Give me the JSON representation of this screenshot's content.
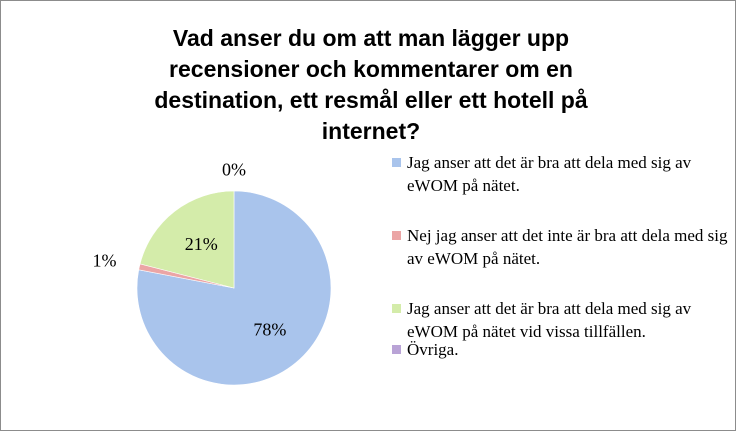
{
  "chart_data": {
    "type": "pie",
    "title": "Vad anser du om att man lägger upp recensioner och kommentarer om en destination, ett resmål eller ett hotell på internet?",
    "slices": [
      {
        "label": "Jag anser att det är bra att dela med sig av eWOM på nätet.",
        "value": 78,
        "value_label": "78%",
        "color": "#a9c4ec"
      },
      {
        "label": "Nej jag anser att det inte är bra att dela med sig av eWOM på nätet.",
        "value": 1,
        "value_label": "1%",
        "color": "#eba5a5"
      },
      {
        "label": "Jag anser att det är bra att dela med sig av eWOM på nätet vid vissa tillfällen.",
        "value": 21,
        "value_label": "21%",
        "color": "#d4ecaa"
      },
      {
        "label": "Övriga.",
        "value": 0,
        "value_label": "0%",
        "color": "#b9a3d6"
      }
    ],
    "legend_position": "right"
  }
}
